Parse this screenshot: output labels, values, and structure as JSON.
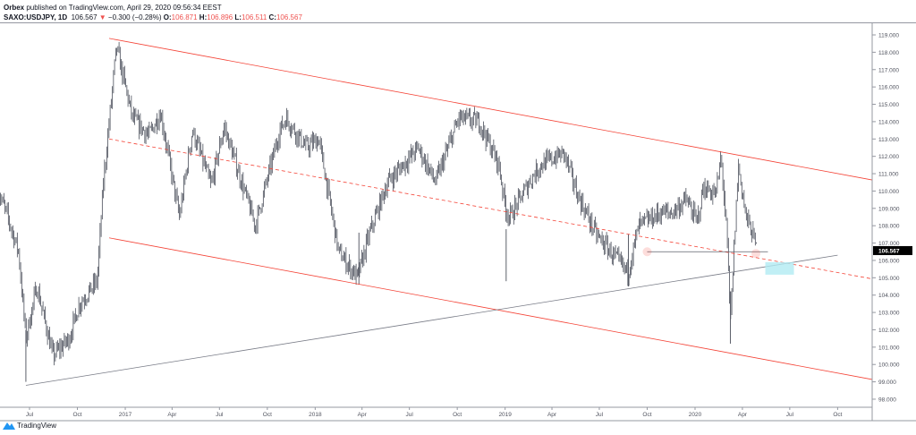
{
  "header": {
    "publisher": "Orbex",
    "published_text": "published on TradingView.com, April 29, 2020 09:56:34 EEST",
    "symbol": "SAXO:USDJPY, 1D",
    "last": "106.567",
    "change": "−0.300 (−0.28%)",
    "o_label": "O:",
    "o": "106.871",
    "h_label": "H:",
    "h": "106.896",
    "l_label": "L:",
    "l": "106.511",
    "c_label": "C:",
    "c": "106.567"
  },
  "footer": {
    "logo_text": "TradingView"
  },
  "chart_data": {
    "type": "candlestick",
    "symbol": "SAXO:USDJPY",
    "interval": "1D",
    "ylim": [
      98,
      119.5
    ],
    "yticks": [
      "119.000",
      "118.000",
      "117.000",
      "116.000",
      "115.000",
      "114.000",
      "113.000",
      "112.000",
      "111.000",
      "110.000",
      "109.000",
      "108.000",
      "107.000",
      "106.000",
      "105.000",
      "104.000",
      "103.000",
      "102.000",
      "101.000",
      "100.000",
      "99.000",
      "98.000"
    ],
    "xticks": [
      "Jul",
      "Oct",
      "2017",
      "Apr",
      "Jul",
      "Oct",
      "2018",
      "Apr",
      "Jul",
      "Oct",
      "2019",
      "Apr",
      "Jul",
      "Oct",
      "2020",
      "Apr",
      "Jul",
      "Oct"
    ],
    "xtick_dates": [
      "2016-07-01",
      "2016-10-01",
      "2017-01-01",
      "2017-04-01",
      "2017-07-01",
      "2017-10-01",
      "2018-01-01",
      "2018-04-01",
      "2018-07-01",
      "2018-10-01",
      "2019-01-01",
      "2019-04-01",
      "2019-07-01",
      "2019-10-01",
      "2020-01-01",
      "2020-04-01",
      "2020-07-01",
      "2020-10-01"
    ],
    "last_price_label": "106.567",
    "approx_path": [
      [
        "2016-05-02",
        110
      ],
      [
        "2016-05-20",
        108.5
      ],
      [
        "2016-06-10",
        106.5
      ],
      [
        "2016-06-24",
        101.5
      ],
      [
        "2016-07-15",
        104.5
      ],
      [
        "2016-08-15",
        100.5
      ],
      [
        "2016-09-15",
        101.5
      ],
      [
        "2016-10-05",
        103.5
      ],
      [
        "2016-11-08",
        104.8
      ],
      [
        "2016-11-20",
        110.5
      ],
      [
        "2016-12-15",
        118.3
      ],
      [
        "2017-01-15",
        114.2
      ],
      [
        "2017-02-15",
        113.2
      ],
      [
        "2017-03-10",
        114.5
      ],
      [
        "2017-04-15",
        108.5
      ],
      [
        "2017-05-10",
        113.5
      ],
      [
        "2017-06-15",
        110.3
      ],
      [
        "2017-07-10",
        113.7
      ],
      [
        "2017-09-08",
        108
      ],
      [
        "2017-10-25",
        113.5
      ],
      [
        "2017-11-06",
        114.2
      ],
      [
        "2017-12-15",
        112.5
      ],
      [
        "2018-01-08",
        113
      ],
      [
        "2018-02-15",
        106.5
      ],
      [
        "2018-03-23",
        105
      ],
      [
        "2018-04-15",
        107.5
      ],
      [
        "2018-05-20",
        110.5
      ],
      [
        "2018-07-18",
        112.5
      ],
      [
        "2018-08-20",
        110.5
      ],
      [
        "2018-10-04",
        114.2
      ],
      [
        "2018-11-12",
        114
      ],
      [
        "2018-12-20",
        111.5
      ],
      [
        "2019-01-02",
        109
      ],
      [
        "2019-01-10",
        108.5
      ],
      [
        "2019-02-20",
        110.7
      ],
      [
        "2019-03-10",
        111.5
      ],
      [
        "2019-04-24",
        112.2
      ],
      [
        "2019-05-20",
        109.8
      ],
      [
        "2019-06-25",
        107.5
      ],
      [
        "2019-08-05",
        106
      ],
      [
        "2019-08-25",
        105.3
      ],
      [
        "2019-09-15",
        108
      ],
      [
        "2019-10-30",
        108.8
      ],
      [
        "2019-11-15",
        108.7
      ],
      [
        "2019-12-15",
        109.5
      ],
      [
        "2020-01-05",
        108.2
      ],
      [
        "2020-01-17",
        110.2
      ],
      [
        "2020-02-10",
        109.8
      ],
      [
        "2020-02-20",
        112
      ],
      [
        "2020-03-02",
        107.5
      ],
      [
        "2020-03-09",
        102.5
      ],
      [
        "2020-03-24",
        111.5
      ],
      [
        "2020-04-08",
        108.5
      ],
      [
        "2020-04-20",
        107.6
      ],
      [
        "2020-04-29",
        106.567
      ]
    ],
    "wicks": [
      [
        "2019-01-03",
        104.8
      ],
      [
        "2020-03-09",
        101.2
      ],
      [
        "2018-03-26",
        104.6
      ],
      [
        "2019-08-26",
        104.5
      ],
      [
        "2016-06-24",
        99
      ]
    ],
    "drawings": {
      "channel_color": "#f44336",
      "support_color": "#787b86",
      "highlight_color": "#b2ebf2",
      "upper_channel": [
        [
          "2016-12-01",
          118.8
        ],
        [
          "2020-12-31",
          110.5
        ]
      ],
      "mid_channel_dashed": [
        [
          "2016-12-01",
          113
        ],
        [
          "2020-12-31",
          104.8
        ]
      ],
      "lower_channel": [
        [
          "2016-12-01",
          107.3
        ],
        [
          "2020-12-31",
          99
        ]
      ],
      "support_line": [
        [
          "2016-06-24",
          98.8
        ],
        [
          "2020-10-01",
          106.3
        ]
      ],
      "horizontal_level": [
        [
          "2019-10-01",
          106.5
        ],
        [
          "2020-05-20",
          106.5
        ]
      ]
    },
    "grid": false
  }
}
